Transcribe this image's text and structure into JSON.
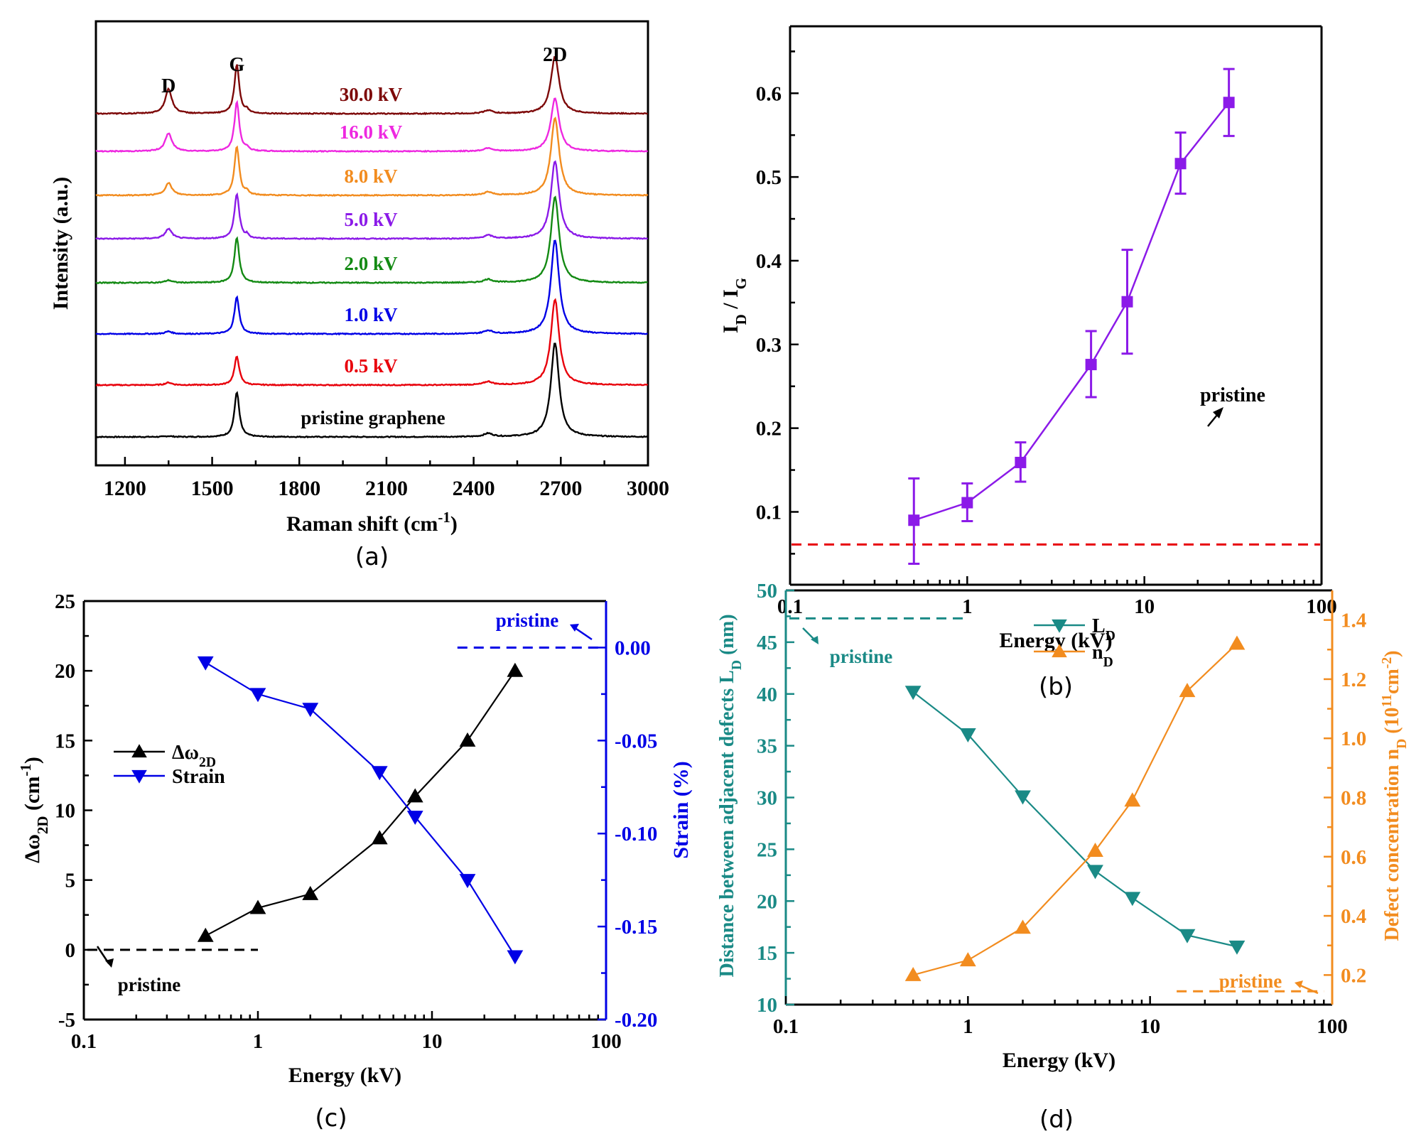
{
  "chart_data": [
    {
      "panel": "a",
      "type": "line",
      "caption": "(a)",
      "xlabel": "Raman shift (cm",
      "xlabel_sup": "-1",
      "xlabel_end": ")",
      "ylabel": "Intensity (a.u.)",
      "xlim": [
        1100,
        3000
      ],
      "xticks": [
        1200,
        1500,
        1800,
        2100,
        2400,
        2700,
        3000
      ],
      "yticks_shown": false,
      "peak_labels": [
        {
          "text": "D",
          "x": 1350
        },
        {
          "text": "G",
          "x": 1585
        },
        {
          "text": "2D",
          "x": 2680
        }
      ],
      "peaks": {
        "D": 1350,
        "G": 1585,
        "D_prime": 1620,
        "D_plus_D2": 2450,
        "2D": 2680
      },
      "series": [
        {
          "name": "pristine graphene",
          "color": "#000000",
          "offset": 0,
          "D": 0.01,
          "G": 0.55,
          "2D": 1.15
        },
        {
          "name": "0.5 kV",
          "color": "#e8000b",
          "offset": 1,
          "D": 0.03,
          "G": 0.35,
          "2D": 1.05
        },
        {
          "name": "1.0 kV",
          "color": "#0000e6",
          "offset": 2,
          "D": 0.03,
          "G": 0.45,
          "2D": 1.15
        },
        {
          "name": "2.0 kV",
          "color": "#138a13",
          "offset": 3,
          "D": 0.03,
          "G": 0.55,
          "2D": 1.05
        },
        {
          "name": "5.0 kV",
          "color": "#8b1ae8",
          "offset": 4,
          "D": 0.12,
          "G": 0.55,
          "2D": 0.95
        },
        {
          "name": "8.0 kV",
          "color": "#f28c1f",
          "offset": 5,
          "D": 0.15,
          "G": 0.6,
          "2D": 0.95
        },
        {
          "name": "16.0 kV",
          "color": "#ee28e0",
          "offset": 6,
          "D": 0.22,
          "G": 0.6,
          "2D": 0.65
        },
        {
          "name": "30.0 kV",
          "color": "#7d0808",
          "offset": 7,
          "D": 0.3,
          "G": 0.6,
          "2D": 0.7
        }
      ]
    },
    {
      "panel": "b",
      "type": "line",
      "caption": "(b)",
      "xlabel": "Energy (kV)",
      "ylabel": "I_D / I_G",
      "xscale": "log",
      "xlim": [
        0.1,
        100
      ],
      "ylim": [
        0.013,
        0.68
      ],
      "xticks": [
        0.1,
        1,
        10,
        100
      ],
      "xtick_labels": [
        "0.1",
        "1",
        "10",
        "100"
      ],
      "yticks": [
        0.1,
        0.2,
        0.3,
        0.4,
        0.5,
        0.6
      ],
      "ytick_labels": [
        "0.1",
        "0.2",
        "0.3",
        "0.4",
        "0.5",
        "0.6"
      ],
      "series": [
        {
          "name": "I_D/I_G",
          "color": "#8b1ae8",
          "marker": "square",
          "x": [
            0.5,
            1,
            2,
            5,
            8,
            16,
            30
          ],
          "y": [
            0.09,
            0.111,
            0.159,
            0.276,
            0.351,
            0.516,
            0.589
          ],
          "err_low": [
            0.038,
            0.089,
            0.136,
            0.237,
            0.289,
            0.48,
            0.549
          ],
          "err_high": [
            0.14,
            0.134,
            0.183,
            0.316,
            0.413,
            0.553,
            0.629
          ]
        }
      ],
      "reference_line": {
        "label": "pristine",
        "y": 0.061,
        "color": "#e8000b",
        "style": "dashed"
      }
    },
    {
      "panel": "c",
      "type": "line",
      "caption": "(c)",
      "xlabel": "Energy (kV)",
      "ylabel": "Δω_2D (cm^-1)",
      "ylabel_right": "Strain (%)",
      "xscale": "log",
      "xlim": [
        0.1,
        100
      ],
      "ylim": [
        -5,
        25
      ],
      "ylim_right": [
        -0.2,
        0.025
      ],
      "xticks": [
        0.1,
        1,
        10,
        100
      ],
      "xtick_labels": [
        "0.1",
        "1",
        "10",
        "100"
      ],
      "yticks": [
        -5,
        0,
        5,
        10,
        15,
        20,
        25
      ],
      "ytick_labels": [
        "-5",
        "0",
        "5",
        "10",
        "15",
        "20",
        "25"
      ],
      "yticks_right": [
        -0.2,
        -0.15,
        -0.1,
        -0.05,
        0.0
      ],
      "ytick_labels_right": [
        "-0.20",
        "-0.15",
        "-0.10",
        "-0.05",
        "0.00"
      ],
      "legend": {
        "position": "center-left",
        "entries": [
          "Δω2D",
          "Strain"
        ]
      },
      "series": [
        {
          "name": "Δω2D",
          "axis": "left",
          "color": "#000000",
          "marker": "triangle-up",
          "x": [
            0.5,
            1,
            2,
            5,
            8,
            16,
            30
          ],
          "y": [
            1,
            3,
            4,
            8,
            11,
            15,
            20
          ]
        },
        {
          "name": "Strain",
          "axis": "right",
          "color": "#0000e6",
          "marker": "triangle-down",
          "x": [
            0.5,
            1,
            2,
            5,
            8,
            16,
            30
          ],
          "y": [
            -0.008,
            -0.025,
            -0.033,
            -0.067,
            -0.091,
            -0.125,
            -0.166
          ]
        }
      ],
      "reference_lines": [
        {
          "label": "pristine",
          "axis": "left",
          "y": 0,
          "x_range": [
            0.1,
            1
          ],
          "color": "#000000",
          "style": "dashed"
        },
        {
          "label": "pristine",
          "axis": "right",
          "y": 0.0,
          "x_range": [
            14,
            100
          ],
          "color": "#0000e6",
          "style": "dashed"
        }
      ]
    },
    {
      "panel": "d",
      "type": "line",
      "caption": "(d)",
      "xlabel": "Energy (kV)",
      "ylabel": "Distance between adjacent defects L_D (nm)",
      "ylabel_right": "Defect concentration n_D (10^11 cm^-2)",
      "xscale": "log",
      "xlim": [
        0.1,
        100
      ],
      "ylim": [
        10,
        50
      ],
      "ylim_right": [
        0.1,
        1.5
      ],
      "xticks": [
        0.1,
        1,
        10,
        100
      ],
      "xtick_labels": [
        "0.1",
        "1",
        "10",
        "100"
      ],
      "yticks": [
        10,
        15,
        20,
        25,
        30,
        35,
        40,
        45,
        50
      ],
      "ytick_labels": [
        "10",
        "15",
        "20",
        "25",
        "30",
        "35",
        "40",
        "45",
        "50"
      ],
      "yticks_right": [
        0.2,
        0.4,
        0.6,
        0.8,
        1.0,
        1.2,
        1.4
      ],
      "ytick_labels_right": [
        "0.2",
        "0.4",
        "0.6",
        "0.8",
        "1.0",
        "1.2",
        "1.4"
      ],
      "legend": {
        "position": "top-center",
        "entries": [
          "LD",
          "nD"
        ]
      },
      "series": [
        {
          "name": "L_D",
          "axis": "left",
          "color": "#1a8a86",
          "marker": "triangle-down",
          "x": [
            0.5,
            1,
            2,
            5,
            8,
            16,
            30
          ],
          "y": [
            40.2,
            36.1,
            30.1,
            22.9,
            20.3,
            16.7,
            15.6
          ]
        },
        {
          "name": "n_D",
          "axis": "right",
          "color": "#f28c1f",
          "marker": "triangle-up",
          "x": [
            0.5,
            1,
            2,
            5,
            8,
            16,
            30
          ],
          "y": [
            0.2,
            0.25,
            0.36,
            0.62,
            0.79,
            1.16,
            1.32
          ]
        }
      ],
      "reference_lines": [
        {
          "label": "pristine",
          "axis": "left",
          "y": 47.3,
          "x_range": [
            0.1,
            1
          ],
          "color": "#1a8a86",
          "style": "dashed"
        },
        {
          "label": "pristine",
          "axis": "right",
          "y": 0.145,
          "x_range": [
            14,
            90
          ],
          "color": "#f28c1f",
          "style": "dashed"
        }
      ]
    }
  ],
  "text": {
    "a_ylabel": "Intensity (a.u.)",
    "energy_label": "Energy (kV)",
    "pristine": "pristine",
    "cap_a": "(a)",
    "cap_b": "(b)",
    "cap_c": "(c)",
    "cap_d": "(d)"
  }
}
